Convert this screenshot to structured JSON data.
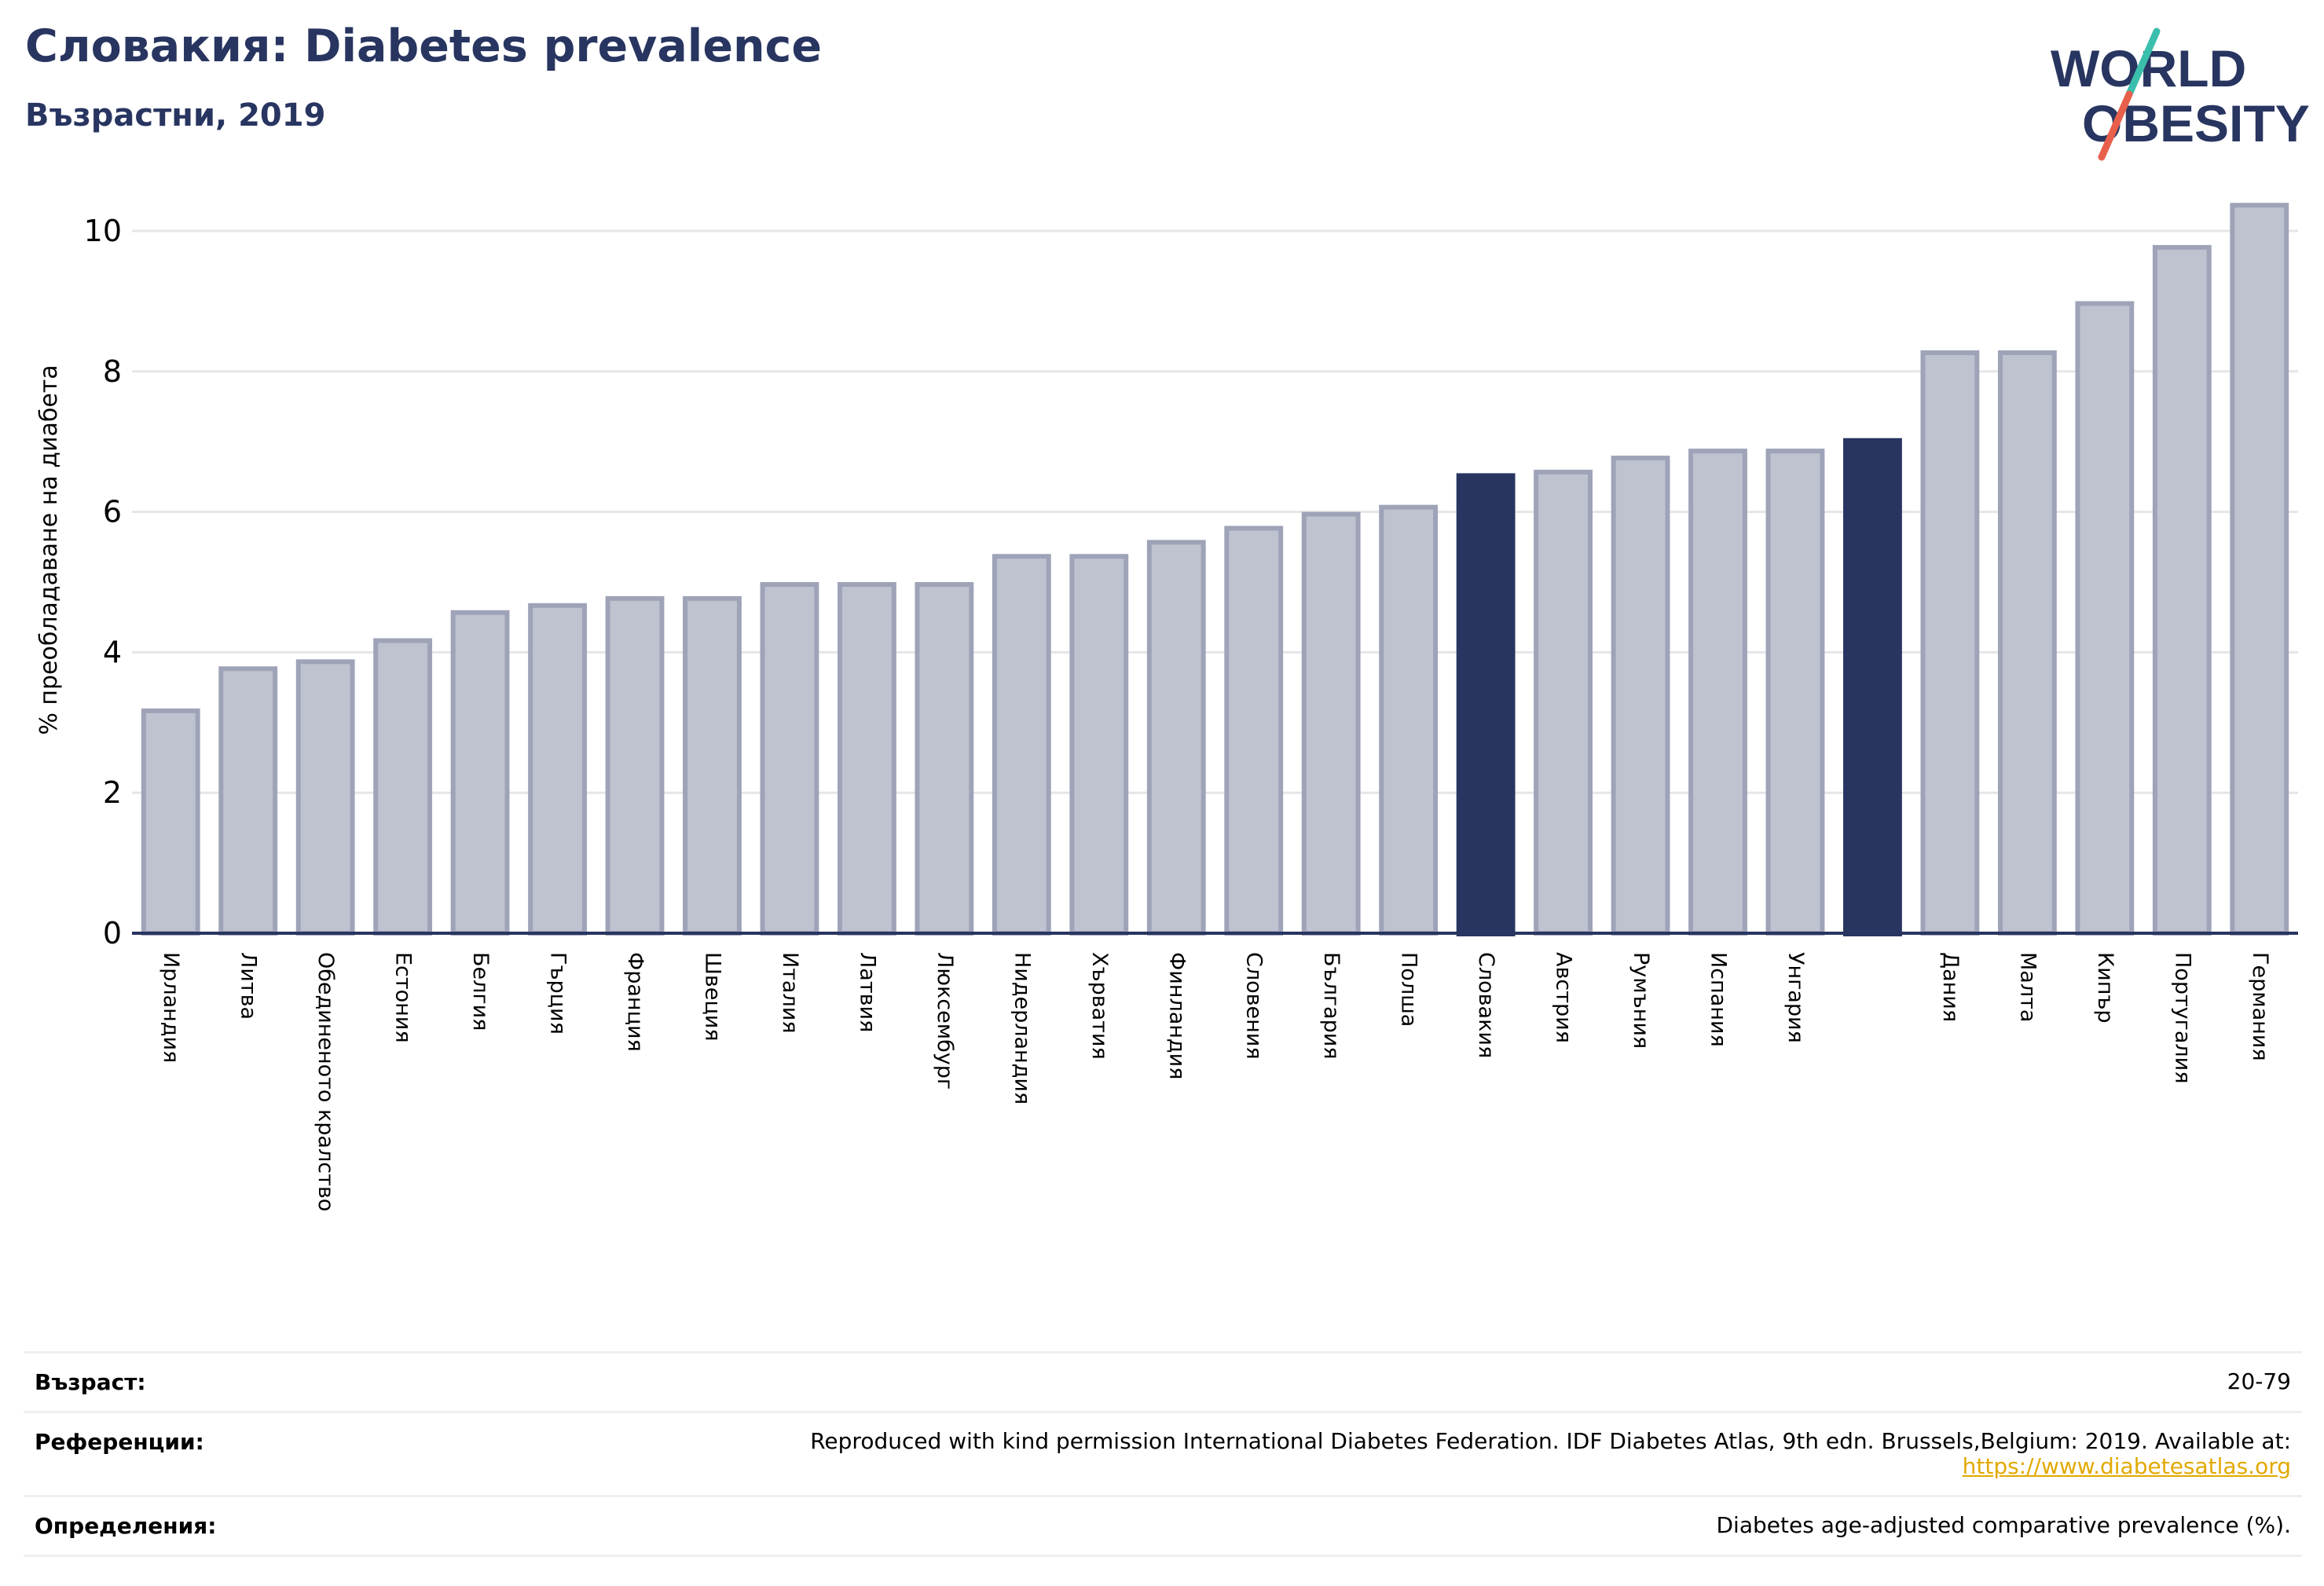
{
  "title": "Словакия: Diabetes prevalence",
  "subtitle": "Възрастни, 2019",
  "logo": {
    "line1": "WORLD",
    "line2": "OBESITY",
    "text_color": "#283560",
    "slash_top_color": "#3bbfad",
    "slash_bottom_color": "#e8604c"
  },
  "colors": {
    "bar": "#bfc2cf",
    "bar_edge": "#9ea3b8",
    "highlight": "#283560",
    "grid": "#e6e6ea",
    "axis": "#283560"
  },
  "chart_data": {
    "type": "bar",
    "title": "Словакия: Diabetes prevalence",
    "subtitle": "Възрастни, 2019",
    "ylabel": "% преобладаване на диабета",
    "xlabel": "",
    "ylim": [
      0,
      10.5
    ],
    "yticks": [
      0,
      2,
      4,
      6,
      8,
      10
    ],
    "grid": true,
    "categories": [
      "Ирландия",
      "Литва",
      "Обединеното кралство",
      "Естония",
      "Белгия",
      "Гърция",
      "Франция",
      "Швеция",
      "Италия",
      "Латвия",
      "Люксембург",
      "Нидерландия",
      "Хърватия",
      "Финландия",
      "Словения",
      "България",
      "Полша",
      "Словакия",
      "Австрия",
      "Румъния",
      "Испания",
      "Унгария",
      "",
      "Дания",
      "Малта",
      "Кипър",
      "Португалия",
      "Германия"
    ],
    "values": [
      3.2,
      3.8,
      3.9,
      4.2,
      4.6,
      4.7,
      4.8,
      4.8,
      5.0,
      5.0,
      5.0,
      5.4,
      5.4,
      5.6,
      5.8,
      6.0,
      6.1,
      6.55,
      6.6,
      6.8,
      6.9,
      6.9,
      7.05,
      8.3,
      8.3,
      9.0,
      9.8,
      10.4
    ],
    "highlighted": [
      "Словакия",
      ""
    ]
  },
  "footer": {
    "age_label": "Възраст:",
    "age_value": "20-79",
    "references_label": "Референции:",
    "references_text": "Reproduced with kind permission International Diabetes Federation. IDF Diabetes Atlas, 9th edn. Brussels,Belgium: 2019. Available at:",
    "references_link": "https://www.diabetesatlas.org",
    "definitions_label": "Определения:",
    "definitions_text": "Diabetes age-adjusted comparative prevalence (%)."
  }
}
